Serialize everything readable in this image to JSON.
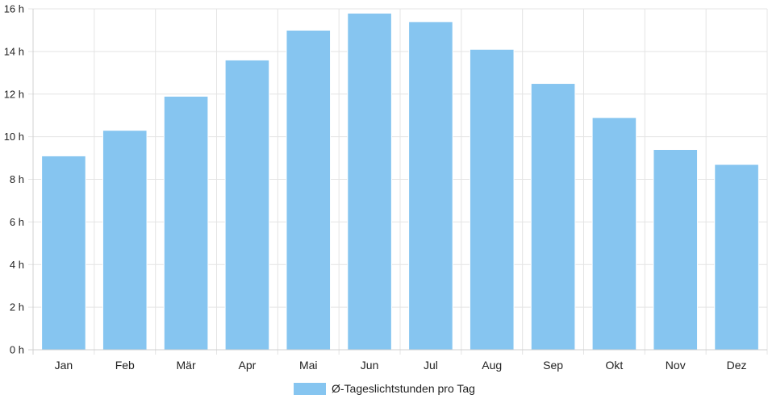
{
  "chart_data": {
    "type": "bar",
    "categories": [
      "Jan",
      "Feb",
      "Mär",
      "Apr",
      "Mai",
      "Jun",
      "Jul",
      "Aug",
      "Sep",
      "Okt",
      "Nov",
      "Dez"
    ],
    "series": [
      {
        "name": "Ø-Tageslichtstunden pro Tag",
        "values": [
          9.1,
          10.3,
          11.9,
          13.6,
          15.0,
          15.8,
          15.4,
          14.1,
          12.5,
          10.9,
          9.4,
          8.7
        ],
        "color": "#86c5f0"
      }
    ],
    "y_ticks": [
      "0 h",
      "2 h",
      "4 h",
      "6 h",
      "8 h",
      "10 h",
      "12 h",
      "14 h",
      "16 h"
    ],
    "ylim": [
      0,
      16
    ],
    "grid": true,
    "legend_position": "bottom"
  }
}
